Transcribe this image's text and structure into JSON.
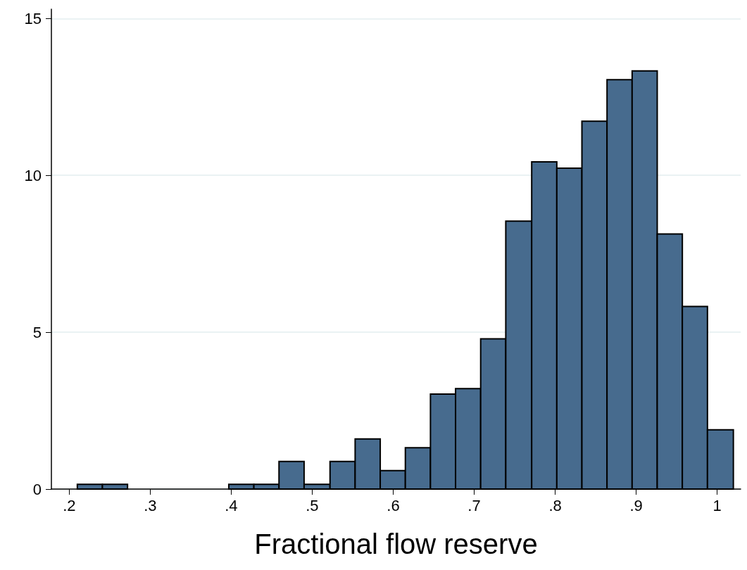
{
  "chart_data": {
    "type": "histogram",
    "xlabel": "Fractional flow reserve",
    "color": "#476b8e",
    "bins": [
      0.21,
      0.241,
      0.272,
      0.397,
      0.428,
      0.459,
      0.49,
      0.522,
      0.553,
      0.584,
      0.615,
      0.646,
      0.677,
      0.708,
      0.739,
      0.771,
      0.802,
      0.833,
      0.864,
      0.895,
      0.926,
      0.957,
      0.988,
      1.02
    ],
    "values": [
      0.15,
      0.15,
      0,
      0.15,
      0.15,
      0.88,
      0.15,
      0.88,
      1.6,
      0.59,
      1.32,
      3.03,
      3.2,
      4.79,
      8.54,
      10.43,
      10.23,
      11.73,
      13.05,
      13.33,
      8.13,
      5.82,
      1.89
    ],
    "xlim": [
      0.178,
      1.029
    ],
    "ylim": [
      0,
      15.3
    ],
    "xticks": [
      {
        "value": 0.2,
        "label": ".2"
      },
      {
        "value": 0.3,
        "label": ".3"
      },
      {
        "value": 0.4,
        "label": ".4"
      },
      {
        "value": 0.5,
        "label": ".5"
      },
      {
        "value": 0.6,
        "label": ".6"
      },
      {
        "value": 0.7,
        "label": ".7"
      },
      {
        "value": 0.8,
        "label": ".8"
      },
      {
        "value": 0.9,
        "label": ".9"
      },
      1
    ],
    "yticks": [
      0,
      5,
      10,
      15
    ],
    "grid": "y"
  }
}
